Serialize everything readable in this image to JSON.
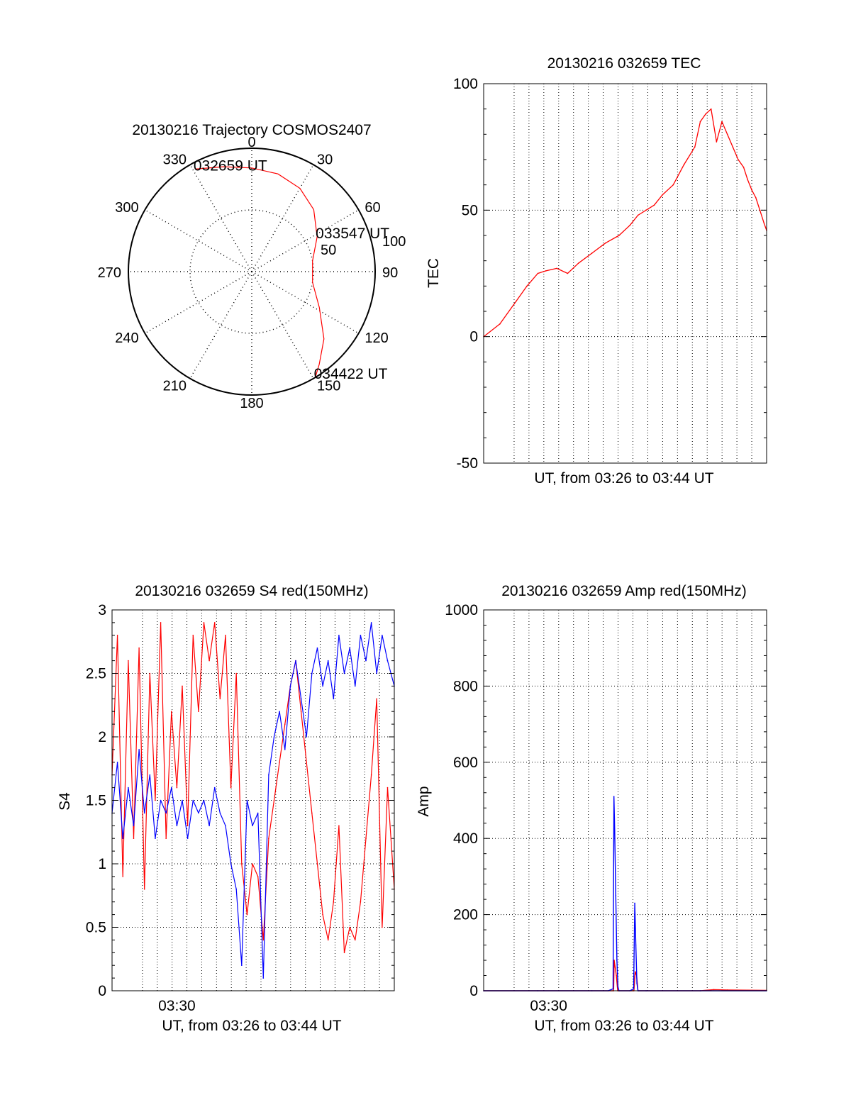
{
  "colors": {
    "red": "#ff0000",
    "blue": "#0000ff",
    "axis": "#000000",
    "grid": "#000000"
  },
  "chart_data": [
    {
      "type": "polar",
      "title": "20130216 Trajectory COSMOS2407",
      "azimuth_labels": [
        "0",
        "30",
        "60",
        "90",
        "120",
        "150",
        "180",
        "210",
        "240",
        "270",
        "300",
        "330"
      ],
      "azimuth_ticks": [
        0,
        30,
        60,
        90,
        120,
        150,
        180,
        210,
        240,
        270,
        300,
        330
      ],
      "radial_labels": [
        "50",
        "100"
      ],
      "radial_ticks": [
        50,
        100
      ],
      "radial_range": [
        0,
        100
      ],
      "grid": true,
      "series": [
        {
          "color": "red",
          "az": [
            331,
            345,
            0,
            15,
            30,
            45,
            62,
            80,
            100,
            118,
            133,
            144,
            149
          ],
          "zd": [
            95,
            88,
            84,
            82,
            78,
            71,
            60,
            50,
            50,
            62,
            80,
            93,
            100
          ]
        }
      ],
      "annotations": [
        {
          "text": "032659 UT",
          "az": 331,
          "zd": 95
        },
        {
          "text": "033547 UT",
          "az": 62,
          "zd": 60
        },
        {
          "text": "034422 UT",
          "az": 149,
          "zd": 100
        }
      ]
    },
    {
      "type": "line",
      "title": "20130216 032659 TEC",
      "xlabel": "UT, from 03:26 to 03:44 UT",
      "ylabel": "TEC",
      "xlim": [
        0,
        1045
      ],
      "ylim": [
        -50,
        100
      ],
      "yticks": [
        -50,
        0,
        50,
        100
      ],
      "grid": true,
      "series": [
        {
          "color": "red",
          "x": [
            0,
            60,
            120,
            160,
            200,
            230,
            270,
            310,
            350,
            400,
            450,
            500,
            540,
            570,
            600,
            630,
            660,
            700,
            740,
            780,
            800,
            820,
            840,
            860,
            880,
            900,
            920,
            940,
            960,
            975,
            990,
            1005,
            1020,
            1035,
            1045
          ],
          "y": [
            0,
            5,
            14,
            20,
            25,
            26,
            27,
            25,
            29,
            33,
            37,
            40,
            44,
            48,
            50,
            52,
            56,
            60,
            68,
            75,
            85,
            88,
            90,
            77,
            85,
            80,
            75,
            70,
            67,
            62,
            58,
            55,
            50,
            45,
            42
          ]
        }
      ]
    },
    {
      "type": "line",
      "title": "20130216 032659 S4 red(150MHz)",
      "xlabel": "UT, from 03:26 to 03:44 UT",
      "ylabel": "S4",
      "xtick_labels": [
        "03:30"
      ],
      "xticks": [
        240
      ],
      "xlim": [
        0,
        1045
      ],
      "ylim": [
        0,
        3
      ],
      "yticks": [
        0,
        0.5,
        1,
        1.5,
        2,
        2.5,
        3
      ],
      "ytick_labels": [
        "0",
        "0.5",
        "1",
        "1.5",
        "2",
        "2.5",
        "3"
      ],
      "grid": true,
      "series": [
        {
          "color": "red",
          "x": [
            0,
            20,
            40,
            60,
            80,
            100,
            120,
            140,
            160,
            180,
            200,
            220,
            240,
            260,
            280,
            300,
            320,
            340,
            360,
            380,
            400,
            420,
            440,
            460,
            480,
            500,
            520,
            540,
            560,
            580,
            600,
            620,
            640,
            660,
            680,
            700,
            720,
            740,
            760,
            780,
            800,
            820,
            840,
            860,
            880,
            900,
            920,
            940,
            960,
            980,
            1000,
            1020,
            1045
          ],
          "y": [
            1.7,
            2.8,
            0.9,
            2.6,
            1.2,
            2.7,
            0.8,
            2.5,
            1.5,
            2.9,
            1.2,
            2.2,
            1.6,
            2.4,
            1.3,
            2.8,
            2.2,
            2.9,
            2.6,
            2.9,
            2.3,
            2.8,
            1.6,
            2.5,
            1.0,
            0.6,
            1.0,
            0.9,
            0.4,
            1.2,
            1.5,
            1.8,
            2.1,
            2.4,
            2.6,
            2.2,
            1.8,
            1.4,
            1.0,
            0.6,
            0.4,
            0.7,
            1.3,
            0.3,
            0.5,
            0.4,
            0.7,
            1.2,
            1.7,
            2.3,
            0.5,
            1.6,
            0.8
          ]
        }
      ],
      "series_2": [
        {
          "color": "blue",
          "x": [
            0,
            20,
            40,
            60,
            80,
            100,
            120,
            140,
            160,
            180,
            200,
            220,
            240,
            260,
            280,
            300,
            320,
            340,
            360,
            380,
            400,
            420,
            440,
            460,
            480,
            500,
            520,
            540,
            560,
            580,
            600,
            620,
            640,
            660,
            680,
            700,
            720,
            740,
            760,
            780,
            800,
            820,
            840,
            860,
            880,
            900,
            920,
            940,
            960,
            980,
            1000,
            1020,
            1045
          ],
          "y": [
            1.4,
            1.8,
            1.2,
            1.6,
            1.3,
            1.9,
            1.4,
            1.7,
            1.2,
            1.5,
            1.4,
            1.6,
            1.3,
            1.5,
            1.2,
            1.5,
            1.4,
            1.5,
            1.3,
            1.6,
            1.4,
            1.3,
            1.0,
            0.8,
            0.2,
            1.5,
            1.3,
            1.4,
            0.1,
            1.7,
            2.0,
            2.2,
            1.9,
            2.4,
            2.6,
            2.3,
            2.0,
            2.5,
            2.7,
            2.4,
            2.6,
            2.3,
            2.8,
            2.5,
            2.7,
            2.4,
            2.8,
            2.6,
            2.9,
            2.5,
            2.8,
            2.6,
            2.4
          ]
        }
      ]
    },
    {
      "type": "line",
      "title": "20130216 032659 Amp red(150MHz)",
      "xlabel": "UT, from 03:26 to 03:44 UT",
      "ylabel": "Amp",
      "xtick_labels": [
        "03:30"
      ],
      "xticks": [
        240
      ],
      "xlim": [
        0,
        1045
      ],
      "ylim": [
        0,
        1000
      ],
      "yticks": [
        0,
        200,
        400,
        600,
        800,
        1000
      ],
      "grid": true,
      "series": [
        {
          "color": "red",
          "x": [
            0,
            200,
            400,
            460,
            480,
            482,
            486,
            490,
            495,
            500,
            540,
            555,
            560,
            565,
            570,
            600,
            800,
            850,
            900,
            1045
          ],
          "y": [
            0,
            0,
            0,
            0,
            0,
            80,
            60,
            40,
            0,
            0,
            0,
            0,
            50,
            40,
            0,
            0,
            0,
            3,
            2,
            1
          ]
        }
      ],
      "series_2": [
        {
          "color": "blue",
          "x": [
            0,
            200,
            400,
            460,
            478,
            481,
            484,
            488,
            492,
            496,
            500,
            540,
            554,
            558,
            562,
            566,
            570,
            600,
            800,
            1045
          ],
          "y": [
            0,
            0,
            0,
            0,
            5,
            510,
            420,
            250,
            80,
            10,
            0,
            0,
            5,
            230,
            120,
            20,
            0,
            0,
            0,
            0
          ]
        }
      ]
    }
  ]
}
